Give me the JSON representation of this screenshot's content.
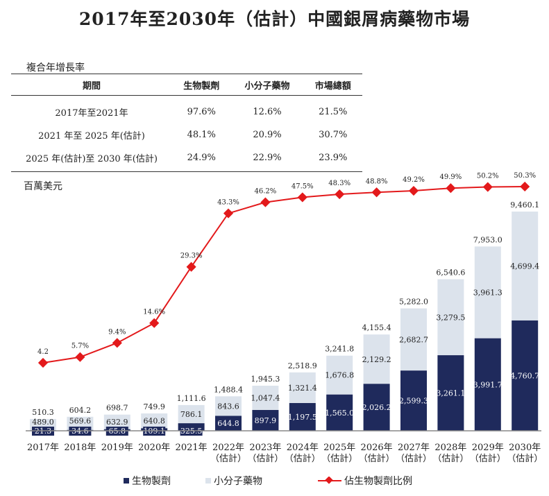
{
  "title": "2017年至2030年（估計）中國銀屑病藥物市場",
  "cagr_table": {
    "label": "複合年增長率",
    "headers": [
      "期間",
      "生物製劑",
      "小分子藥物",
      "市場總額"
    ],
    "rows": [
      [
        "2017年至2021年",
        "97.6%",
        "12.6%",
        "21.5%"
      ],
      [
        "2021 年至 2025 年(估計)",
        "48.1%",
        "20.9%",
        "30.7%"
      ],
      [
        "2025 年(估計)至 2030 年(估計)",
        "24.9%",
        "22.9%",
        "23.9%"
      ]
    ]
  },
  "chart_data": {
    "type": "bar",
    "stacked": true,
    "unit_label": "百萬美元",
    "categories": [
      "2017年",
      "2018年",
      "2019年",
      "2020年",
      "2021年",
      "2022年\n（估計）",
      "2023年\n（估計）",
      "2024年\n（估計）",
      "2025年\n（估計）",
      "2026年\n（估計）",
      "2027年\n（估計）",
      "2028年\n（估計）",
      "2029年\n（估計）",
      "2030年\n（估計）"
    ],
    "series": [
      {
        "name": "生物製劑",
        "color": "#1f2a5c",
        "values": [
          21.3,
          34.6,
          65.8,
          109.1,
          325.5,
          644.8,
          897.9,
          1197.5,
          1565.0,
          2026.2,
          2599.3,
          3261.1,
          3991.7,
          4760.7
        ]
      },
      {
        "name": "小分子藥物",
        "color": "#dce3ec",
        "values": [
          489.0,
          569.6,
          632.9,
          640.8,
          786.1,
          843.6,
          1047.4,
          1321.4,
          1676.8,
          2129.2,
          2682.7,
          3279.5,
          3961.3,
          4699.4
        ]
      }
    ],
    "totals": [
      510.3,
      604.2,
      698.7,
      749.9,
      1111.6,
      1488.4,
      1945.3,
      2518.9,
      3241.8,
      4155.4,
      5282.0,
      6540.6,
      7953.0,
      9460.1
    ],
    "line_series": {
      "name": "佔生物製劑比例",
      "color": "#e3191b",
      "labels": [
        "4.2",
        "5.7%",
        "9.4%",
        "14.6%",
        "29.3%",
        "43.3%",
        "46.2%",
        "47.5%",
        "48.3%",
        "48.8%",
        "49.2%",
        "49.9%",
        "50.2%",
        "50.3%"
      ],
      "values": [
        4.2,
        5.7,
        9.4,
        14.6,
        29.3,
        43.3,
        46.2,
        47.5,
        48.3,
        48.8,
        49.2,
        49.9,
        50.2,
        50.3
      ]
    },
    "legend": [
      "生物製劑",
      "小分子藥物",
      "佔生物製劑比例"
    ],
    "legend_position": "bottom"
  }
}
